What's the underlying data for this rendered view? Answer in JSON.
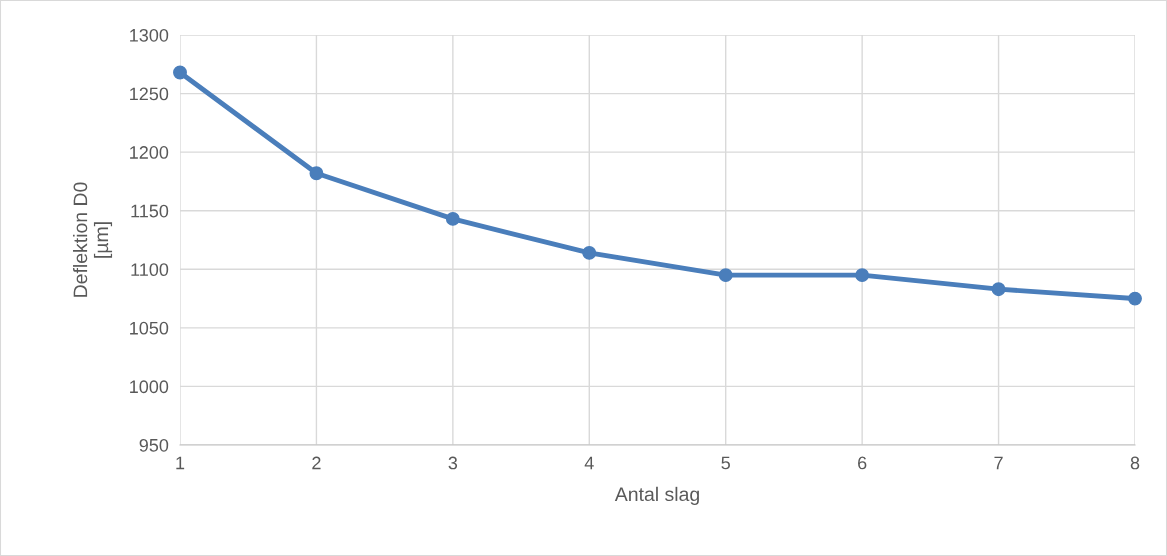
{
  "chart_data": {
    "type": "line",
    "xlabel": "Antal slag",
    "ylabel": "Deflektion D0\n[µm]",
    "x": [
      1,
      2,
      3,
      4,
      5,
      6,
      7,
      8
    ],
    "series": [
      {
        "color": "#4a7ebb",
        "values": [
          1268,
          1182,
          1143,
          1114,
          1095,
          1095,
          1083,
          1075
        ]
      }
    ],
    "xlim": [
      1,
      8
    ],
    "xticks": [
      1,
      2,
      3,
      4,
      5,
      6,
      7,
      8
    ],
    "ylim": [
      950,
      1300
    ],
    "yticks": [
      950,
      1000,
      1050,
      1100,
      1150,
      1200,
      1250,
      1300
    ],
    "grid": true,
    "marker": "circle",
    "line_style": "solid"
  }
}
